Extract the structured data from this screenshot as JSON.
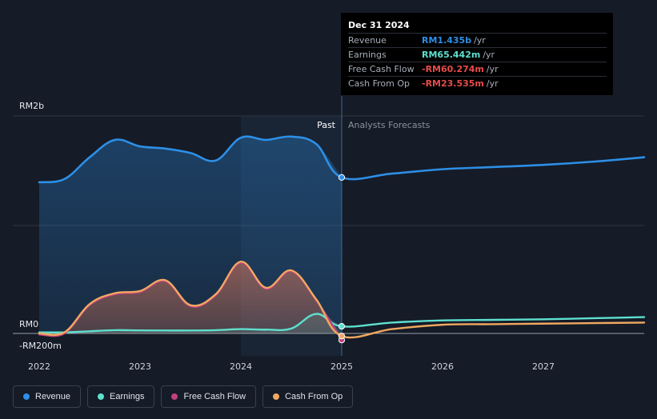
{
  "chart_data": {
    "type": "area",
    "y_labels": {
      "top": "RM2b",
      "zero": "RM0",
      "bottom": "-RM200m"
    },
    "ylim": [
      -200000000,
      2000000000
    ],
    "xlim": [
      2022.0,
      2028.0
    ],
    "x_ticks": [
      "2022",
      "2023",
      "2024",
      "2025",
      "2026",
      "2027"
    ],
    "x_tick_values": [
      2022,
      2023,
      2024,
      2025,
      2026,
      2027
    ],
    "divider_x": 2025.0,
    "past_label": "Past",
    "forecast_label": "Analysts Forecasts",
    "grid": true,
    "series": [
      {
        "name": "Revenue",
        "color": "#2d8fe6",
        "x": [
          2022.0,
          2022.25,
          2022.5,
          2022.75,
          2023.0,
          2023.25,
          2023.5,
          2023.75,
          2024.0,
          2024.25,
          2024.5,
          2024.75,
          2025.0,
          2025.5,
          2026.0,
          2026.5,
          2027.0,
          2027.5,
          2028.0
        ],
        "y": [
          1390000000,
          1420000000,
          1620000000,
          1780000000,
          1720000000,
          1700000000,
          1660000000,
          1590000000,
          1800000000,
          1780000000,
          1810000000,
          1740000000,
          1435000000,
          1470000000,
          1510000000,
          1530000000,
          1550000000,
          1580000000,
          1620000000
        ]
      },
      {
        "name": "Earnings",
        "color": "#5ee0cf",
        "x": [
          2022.0,
          2022.25,
          2022.5,
          2022.75,
          2023.0,
          2023.25,
          2023.5,
          2023.75,
          2024.0,
          2024.25,
          2024.5,
          2024.75,
          2025.0,
          2025.5,
          2026.0,
          2026.5,
          2027.0,
          2027.5,
          2028.0
        ],
        "y": [
          10000000,
          10000000,
          20000000,
          30000000,
          28000000,
          27000000,
          27000000,
          30000000,
          40000000,
          35000000,
          45000000,
          180000000,
          65442000,
          100000000,
          120000000,
          125000000,
          130000000,
          140000000,
          150000000
        ]
      },
      {
        "name": "Free Cash Flow",
        "color": "#c2407f",
        "x": [
          2022.0,
          2022.25,
          2022.5,
          2022.75,
          2023.0,
          2023.25,
          2023.5,
          2023.75,
          2024.0,
          2024.25,
          2024.5,
          2024.75,
          2025.0
        ],
        "y": [
          -10000000,
          0,
          260000000,
          360000000,
          380000000,
          480000000,
          250000000,
          350000000,
          650000000,
          410000000,
          570000000,
          300000000,
          -60274000
        ]
      },
      {
        "name": "Cash From Op",
        "color": "#f0a860",
        "x": [
          2022.0,
          2022.25,
          2022.5,
          2022.75,
          2023.0,
          2023.25,
          2023.5,
          2023.75,
          2024.0,
          2024.25,
          2024.5,
          2024.75,
          2025.0,
          2025.5,
          2026.0,
          2026.5,
          2027.0,
          2027.5,
          2028.0
        ],
        "y": [
          0,
          10000000,
          270000000,
          370000000,
          390000000,
          490000000,
          260000000,
          360000000,
          660000000,
          420000000,
          580000000,
          310000000,
          -23535000,
          40000000,
          80000000,
          85000000,
          90000000,
          95000000,
          100000000
        ]
      }
    ]
  },
  "tooltip": {
    "date": "Dec 31 2024",
    "rows": [
      {
        "label": "Revenue",
        "value": "RM1.435b",
        "unit": "/yr",
        "color": "#2d8fe6"
      },
      {
        "label": "Earnings",
        "value": "RM65.442m",
        "unit": "/yr",
        "color": "#5ee0cf"
      },
      {
        "label": "Free Cash Flow",
        "value": "-RM60.274m",
        "unit": "/yr",
        "color": "#e84b4b"
      },
      {
        "label": "Cash From Op",
        "value": "-RM23.535m",
        "unit": "/yr",
        "color": "#e84b4b"
      }
    ]
  },
  "legend": [
    {
      "label": "Revenue",
      "color": "#2d8fe6"
    },
    {
      "label": "Earnings",
      "color": "#5ee0cf"
    },
    {
      "label": "Free Cash Flow",
      "color": "#c2407f"
    },
    {
      "label": "Cash From Op",
      "color": "#f0a860"
    }
  ]
}
